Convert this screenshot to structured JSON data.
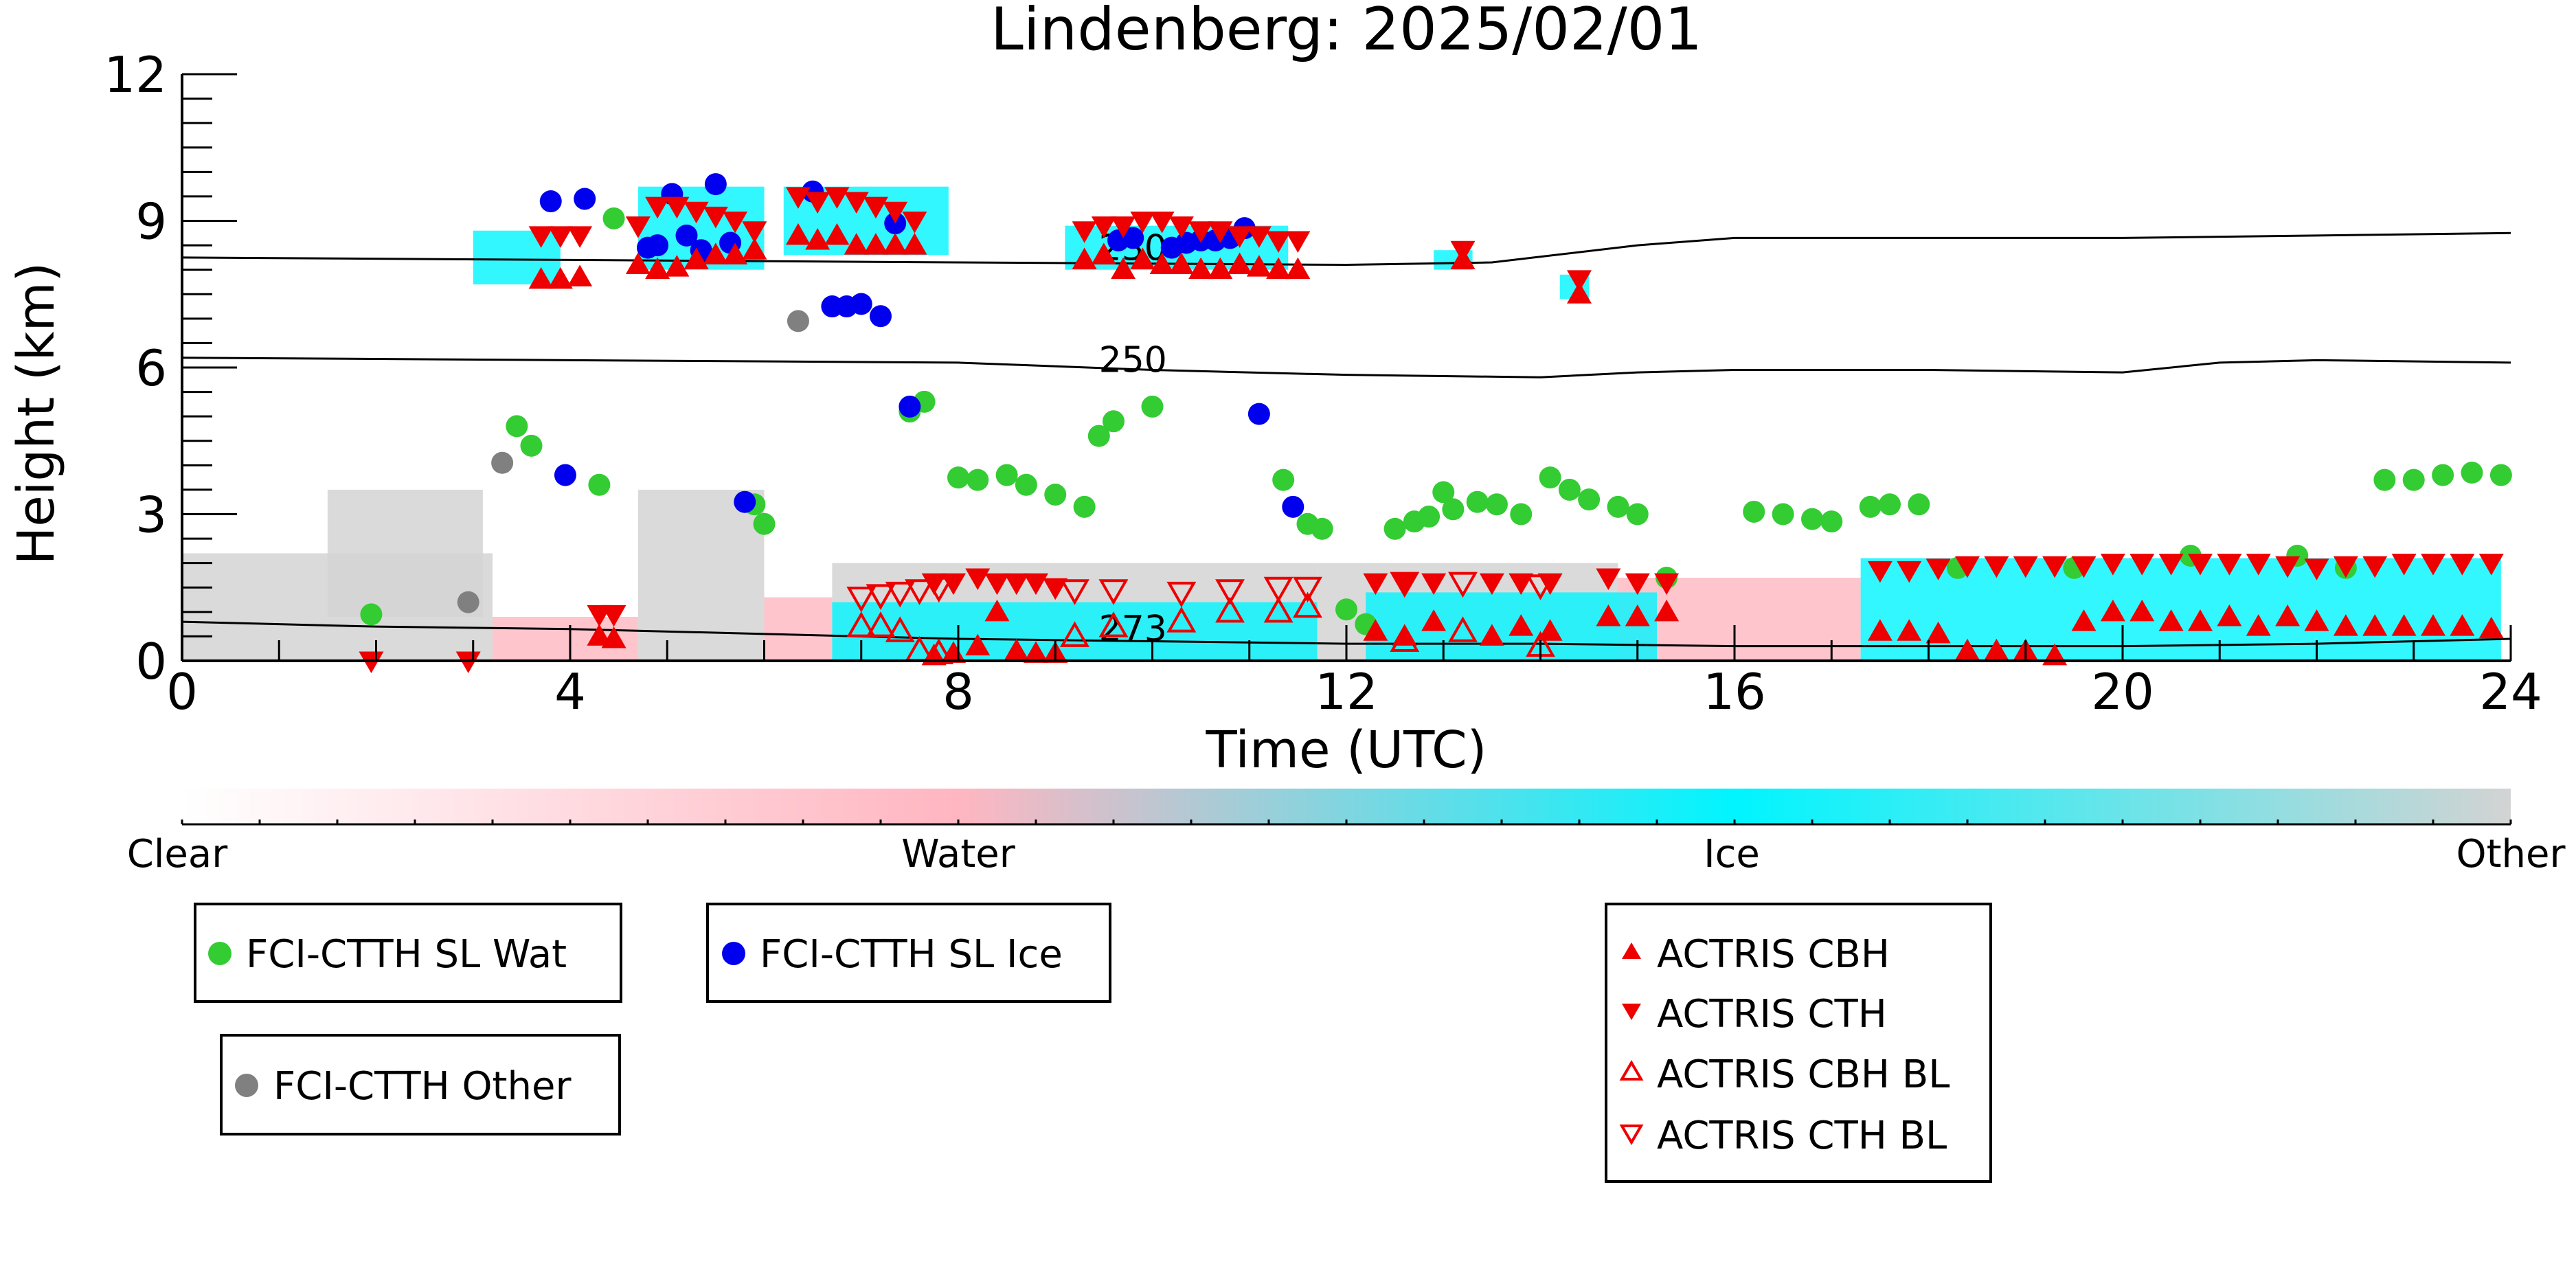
{
  "chart_data": {
    "type": "scatter",
    "title": "Lindenberg: 2025/02/01",
    "xlabel": "Time (UTC)",
    "ylabel": "Height (km)",
    "xlim": [
      0,
      24
    ],
    "ylim": [
      0,
      12
    ],
    "x_ticks": [
      "0",
      "4",
      "8",
      "12",
      "16",
      "20",
      "24"
    ],
    "y_ticks": [
      "0",
      "3",
      "6",
      "9",
      "12"
    ],
    "grid": false,
    "colorbar": {
      "labels": [
        "Clear",
        "Water",
        "Ice",
        "Other"
      ],
      "colors": [
        "#ffffff",
        "#ffb6c1",
        "#00f5ff",
        "#d3d3d3"
      ]
    },
    "temperature_contours": [
      {
        "label": "230",
        "x": [
          0,
          4,
          8,
          12,
          13.5,
          15,
          16,
          18,
          20,
          22,
          24
        ],
        "y": [
          8.25,
          8.2,
          8.15,
          8.1,
          8.15,
          8.5,
          8.65,
          8.65,
          8.65,
          8.7,
          8.75
        ]
      },
      {
        "label": "250",
        "x": [
          0,
          4,
          8,
          10,
          12,
          14,
          15,
          16,
          18,
          20,
          21,
          22,
          24
        ],
        "y": [
          6.2,
          6.15,
          6.1,
          5.95,
          5.85,
          5.8,
          5.9,
          5.95,
          5.95,
          5.9,
          6.1,
          6.15,
          6.1
        ]
      },
      {
        "label": "273",
        "x": [
          0,
          2,
          4,
          6,
          8,
          10,
          12,
          14,
          16,
          18,
          20,
          22,
          24
        ],
        "y": [
          0.8,
          0.7,
          0.65,
          0.55,
          0.45,
          0.4,
          0.35,
          0.35,
          0.3,
          0.3,
          0.3,
          0.35,
          0.45
        ]
      }
    ],
    "series": [
      {
        "name": "FCI-CTTH SL Wat",
        "color": "#33cc33",
        "marker": "circle",
        "x": [
          1.95,
          3.45,
          3.6,
          4.3,
          4.45,
          5.9,
          6.0,
          7.5,
          7.65,
          8.0,
          8.2,
          8.5,
          8.7,
          9.0,
          9.3,
          9.45,
          9.6,
          10.0,
          11.35,
          11.6,
          11.75,
          12.0,
          12.2,
          12.5,
          12.7,
          12.85,
          13.0,
          13.1,
          13.35,
          13.55,
          13.8,
          14.1,
          14.3,
          14.5,
          14.8,
          15.0,
          15.3,
          16.2,
          16.5,
          16.8,
          17.0,
          17.4,
          17.6,
          17.9,
          18.3,
          19.5,
          20.7,
          21.8,
          22.3,
          22.7,
          23.0,
          23.3,
          23.6,
          23.9
        ],
        "y": [
          0.95,
          4.8,
          4.4,
          3.6,
          9.05,
          3.2,
          2.8,
          5.1,
          5.3,
          3.75,
          3.7,
          3.8,
          3.6,
          3.4,
          3.15,
          4.6,
          4.9,
          5.2,
          3.7,
          2.8,
          2.7,
          1.05,
          0.75,
          2.7,
          2.85,
          2.95,
          3.45,
          3.1,
          3.25,
          3.2,
          3.0,
          3.75,
          3.5,
          3.3,
          3.15,
          3.0,
          1.7,
          3.05,
          3.0,
          2.9,
          2.85,
          3.15,
          3.2,
          3.2,
          1.9,
          1.9,
          2.15,
          2.15,
          1.9,
          3.7,
          3.7,
          3.8,
          3.85,
          3.8
        ]
      },
      {
        "name": "FCI-CTTH SL Ice",
        "color": "#0000ee",
        "marker": "circle",
        "x": [
          3.8,
          4.15,
          3.95,
          4.8,
          4.9,
          5.05,
          5.2,
          5.35,
          5.5,
          5.65,
          5.8,
          6.5,
          6.7,
          6.85,
          7.0,
          7.2,
          7.35,
          7.5,
          9.65,
          9.8,
          10.2,
          10.35,
          10.5,
          10.65,
          10.8,
          10.95,
          11.1,
          11.45
        ],
        "y": [
          9.4,
          9.45,
          3.8,
          8.45,
          8.5,
          9.55,
          8.7,
          8.4,
          9.75,
          8.55,
          3.25,
          9.6,
          7.25,
          7.25,
          7.3,
          7.05,
          8.95,
          5.2,
          8.6,
          8.65,
          8.45,
          8.55,
          8.6,
          8.6,
          8.65,
          8.85,
          5.05,
          3.15
        ]
      },
      {
        "name": "FCI-CTTH Other",
        "color": "#808080",
        "marker": "circle",
        "x": [
          2.95,
          3.3,
          6.35
        ],
        "y": [
          1.2,
          4.05,
          6.95
        ]
      },
      {
        "name": "ACTRIS CBH",
        "color": "#ee0000",
        "marker": "triangle-up",
        "filled": true,
        "x": [
          3.7,
          3.9,
          4.1,
          4.3,
          4.45,
          4.7,
          4.9,
          5.1,
          5.3,
          5.5,
          5.7,
          5.9,
          6.35,
          6.55,
          6.75,
          6.95,
          7.15,
          7.35,
          7.55,
          7.75,
          7.95,
          8.2,
          8.4,
          8.6,
          8.8,
          9.0,
          9.3,
          9.5,
          9.7,
          9.9,
          10.1,
          10.3,
          10.5,
          10.7,
          10.9,
          11.1,
          11.3,
          11.5,
          12.3,
          12.6,
          12.9,
          13.2,
          13.5,
          13.8,
          14.1,
          14.4,
          14.7,
          15.0,
          15.3,
          17.5,
          17.8,
          18.1,
          18.4,
          18.7,
          19.0,
          19.3,
          19.6,
          19.9,
          20.2,
          20.5,
          20.8,
          21.1,
          21.4,
          21.7,
          22.0,
          22.3,
          22.6,
          22.9,
          23.2,
          23.5,
          23.8
        ],
        "y": [
          7.8,
          7.8,
          7.85,
          0.5,
          0.45,
          8.1,
          8.0,
          8.05,
          8.2,
          8.3,
          8.3,
          8.4,
          8.7,
          8.6,
          8.7,
          8.5,
          8.5,
          8.5,
          8.5,
          0.1,
          0.15,
          0.3,
          1.0,
          0.2,
          0.15,
          0.15,
          8.2,
          8.3,
          8.0,
          8.2,
          8.1,
          8.1,
          8.0,
          8.0,
          8.1,
          8.05,
          8.0,
          8.0,
          0.6,
          0.5,
          0.8,
          8.2,
          0.5,
          0.7,
          0.6,
          7.5,
          0.9,
          0.9,
          1.0,
          0.6,
          0.6,
          0.55,
          0.2,
          0.2,
          0.2,
          0.1,
          0.8,
          1.0,
          1.0,
          0.8,
          0.8,
          0.9,
          0.7,
          0.9,
          0.8,
          0.7,
          0.7,
          0.7,
          0.7,
          0.7,
          0.65
        ]
      },
      {
        "name": "ACTRIS CTH",
        "color": "#ee0000",
        "marker": "triangle-down",
        "filled": true,
        "x": [
          1.95,
          2.95,
          3.7,
          3.9,
          4.1,
          4.3,
          4.45,
          4.7,
          4.9,
          5.1,
          5.3,
          5.5,
          5.7,
          5.9,
          6.35,
          6.55,
          6.75,
          6.95,
          7.15,
          7.35,
          7.55,
          7.75,
          7.95,
          8.2,
          8.4,
          8.6,
          8.8,
          9.0,
          9.3,
          9.5,
          9.7,
          9.9,
          10.1,
          10.3,
          10.5,
          10.7,
          10.9,
          11.1,
          11.3,
          11.5,
          12.3,
          12.6,
          12.9,
          13.2,
          13.5,
          13.8,
          14.1,
          14.4,
          14.7,
          15.0,
          15.3,
          17.5,
          17.8,
          18.1,
          18.4,
          18.7,
          19.0,
          19.3,
          19.6,
          19.9,
          20.2,
          20.5,
          20.8,
          21.1,
          21.4,
          21.7,
          22.0,
          22.3,
          22.6,
          22.9,
          23.2,
          23.5,
          23.8
        ],
        "y": [
          0.0,
          0.0,
          8.7,
          8.7,
          8.7,
          0.95,
          0.95,
          8.9,
          9.3,
          9.3,
          9.2,
          9.1,
          9.0,
          8.8,
          9.5,
          9.4,
          9.5,
          9.4,
          9.3,
          9.2,
          9.0,
          1.6,
          1.6,
          1.7,
          1.6,
          1.6,
          1.6,
          1.5,
          8.8,
          8.9,
          8.9,
          9.0,
          9.0,
          8.9,
          8.8,
          8.8,
          8.7,
          8.7,
          8.6,
          8.6,
          1.6,
          1.6,
          1.6,
          8.4,
          1.6,
          1.6,
          1.6,
          7.8,
          1.7,
          1.6,
          1.6,
          1.85,
          1.85,
          1.9,
          1.95,
          1.95,
          1.95,
          1.95,
          1.95,
          2.0,
          2.0,
          2.0,
          2.0,
          2.0,
          2.0,
          1.95,
          1.9,
          1.95,
          1.95,
          2.0,
          2.0,
          2.0,
          2.0
        ]
      },
      {
        "name": "ACTRIS CBH BL",
        "color": "#ee0000",
        "marker": "triangle-up",
        "filled": false,
        "x": [
          7.0,
          7.2,
          7.4,
          7.6,
          7.8,
          9.2,
          9.6,
          10.3,
          10.8,
          11.3,
          11.6,
          12.6,
          13.2,
          14.0
        ],
        "y": [
          0.7,
          0.7,
          0.6,
          0.2,
          0.15,
          0.5,
          0.7,
          0.8,
          1.0,
          1.0,
          1.1,
          0.4,
          0.6,
          0.3
        ]
      },
      {
        "name": "ACTRIS CTH BL",
        "color": "#ee0000",
        "marker": "triangle-down",
        "filled": false,
        "x": [
          7.0,
          7.2,
          7.4,
          7.6,
          7.8,
          9.2,
          9.6,
          10.3,
          10.8,
          11.3,
          11.6,
          12.6,
          13.2,
          14.0
        ],
        "y": [
          1.3,
          1.35,
          1.4,
          1.45,
          1.5,
          1.45,
          1.45,
          1.4,
          1.45,
          1.5,
          1.5,
          1.6,
          1.6,
          1.55
        ]
      }
    ]
  }
}
